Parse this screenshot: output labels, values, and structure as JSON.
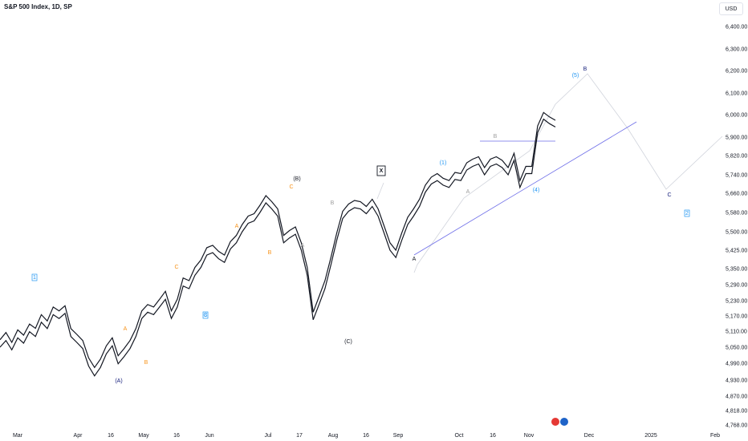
{
  "header": {
    "title": "S&P 500 Index, 1D, SP",
    "currency": "USD"
  },
  "colors": {
    "price": "#131722",
    "blue_line": "#6e6ee8",
    "label_orange": "#f7931a",
    "label_blue": "#2196f3",
    "label_navy": "#1a237e",
    "label_grey": "#9e9e9e",
    "projection": "#d1d4dc"
  },
  "chart_data": {
    "type": "line",
    "title": "S&P 500 Index, 1D, SP",
    "y_ticks": [
      "6,400.00",
      "6,300.00",
      "6,200.00",
      "6,100.00",
      "6,000.00",
      "5,900.00",
      "5,820.00",
      "5,740.00",
      "5,660.00",
      "5,580.00",
      "5,500.00",
      "5,425.00",
      "5,350.00",
      "5,290.00",
      "5,230.00",
      "5,170.00",
      "5,110.00",
      "5,050.00",
      "4,990.00",
      "4,930.00",
      "4,870.00",
      "4,818.00",
      "4,768.00"
    ],
    "x_ticks": [
      "Mar",
      "Apr",
      "16",
      "May",
      "16",
      "Jun",
      "Jul",
      "17",
      "Aug",
      "16",
      "Sep",
      "Oct",
      "16",
      "Nov",
      "Dec",
      "2025",
      "Feb"
    ],
    "series": [
      {
        "values": [
          5078,
          5105,
          5068,
          5115,
          5095,
          5138,
          5121,
          5175,
          5150,
          5205,
          5190,
          5210,
          5120,
          5098,
          5075,
          5010,
          4975,
          5005,
          5055,
          5085,
          5018,
          5045,
          5075,
          5120,
          5190,
          5215,
          5205,
          5235,
          5265,
          5190,
          5235,
          5315,
          5305,
          5355,
          5385,
          5435,
          5445,
          5420,
          5405,
          5460,
          5485,
          5530,
          5565,
          5575,
          5610,
          5650,
          5625,
          5595,
          5485,
          5505,
          5520,
          5455,
          5355,
          5185,
          5245,
          5305,
          5395,
          5495,
          5585,
          5615,
          5630,
          5625,
          5605,
          5635,
          5595,
          5525,
          5455,
          5425,
          5495,
          5560,
          5595,
          5635,
          5695,
          5730,
          5745,
          5725,
          5715,
          5750,
          5745,
          5790,
          5805,
          5815,
          5770,
          5805,
          5815,
          5800,
          5770,
          5830,
          5715,
          5775,
          5775,
          5950,
          6010,
          5990,
          5975
        ]
      },
      {
        "values": [
          5050,
          5075,
          5040,
          5085,
          5065,
          5108,
          5090,
          5145,
          5120,
          5175,
          5160,
          5180,
          5090,
          5068,
          5045,
          4980,
          4945,
          4975,
          5025,
          5055,
          4988,
          5015,
          5045,
          5090,
          5160,
          5185,
          5175,
          5205,
          5235,
          5160,
          5205,
          5285,
          5275,
          5325,
          5355,
          5405,
          5415,
          5390,
          5375,
          5430,
          5455,
          5500,
          5535,
          5545,
          5580,
          5620,
          5595,
          5565,
          5455,
          5475,
          5490,
          5425,
          5325,
          5155,
          5215,
          5275,
          5365,
          5465,
          5555,
          5585,
          5600,
          5595,
          5575,
          5605,
          5565,
          5495,
          5425,
          5395,
          5465,
          5530,
          5565,
          5605,
          5665,
          5700,
          5715,
          5695,
          5685,
          5720,
          5715,
          5760,
          5775,
          5785,
          5740,
          5775,
          5785,
          5770,
          5740,
          5800,
          5685,
          5745,
          5745,
          5920,
          5980,
          5960,
          5945
        ]
      }
    ],
    "annotations": [
      "(A)",
      "A",
      "B",
      "C",
      "(B)",
      "C",
      "A",
      "B",
      "A",
      "B",
      "C",
      "(C)",
      "X",
      "A",
      "(1)",
      "B",
      "A",
      "(4)",
      "(5)",
      "B",
      "C",
      "1",
      "2",
      "3"
    ]
  }
}
